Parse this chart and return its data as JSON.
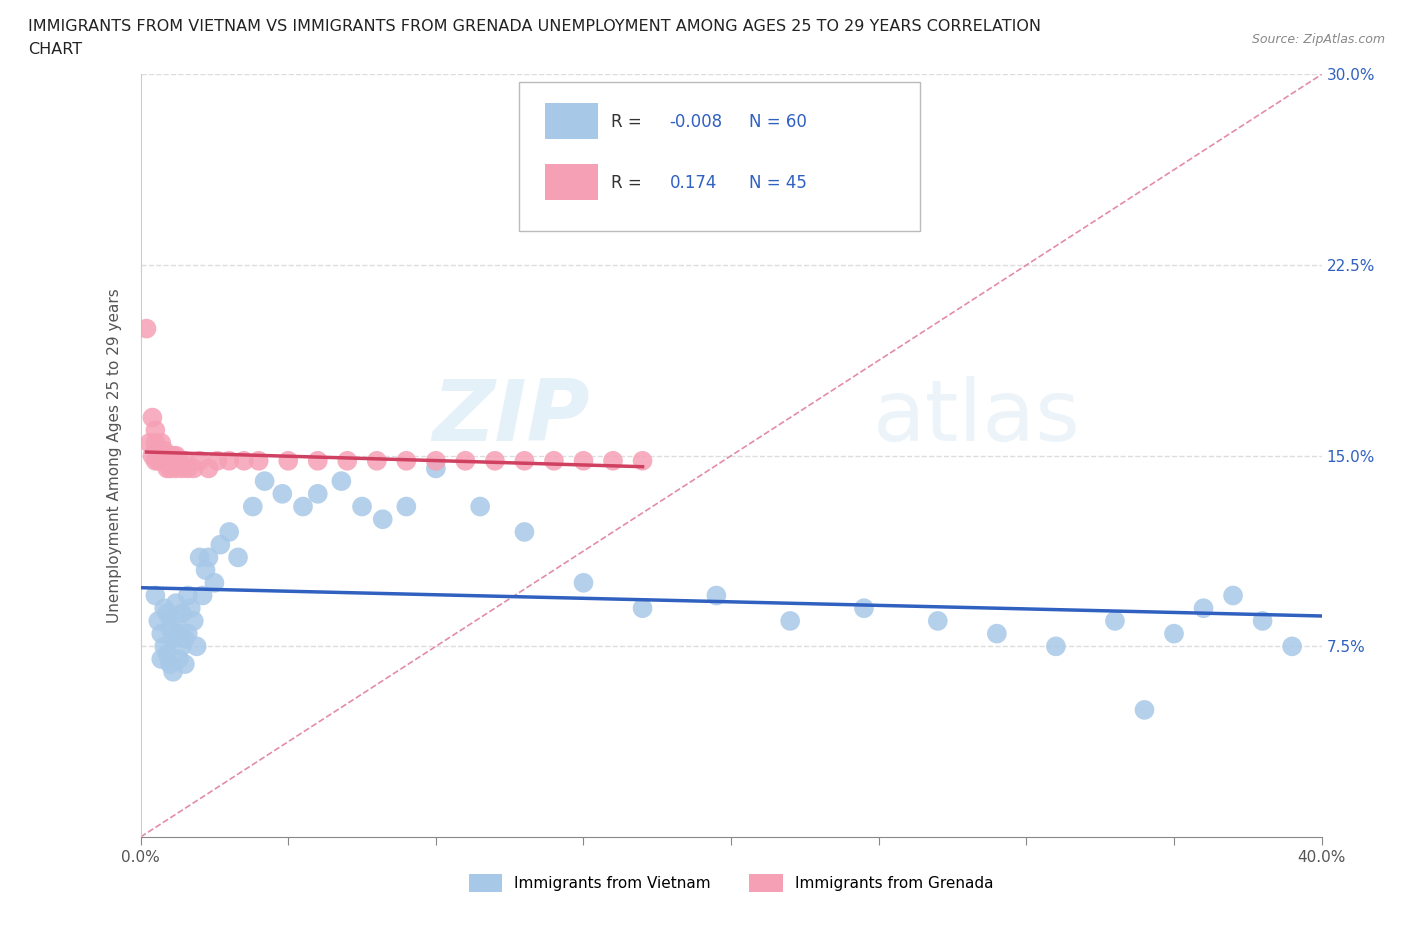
{
  "title_line1": "IMMIGRANTS FROM VIETNAM VS IMMIGRANTS FROM GRENADA UNEMPLOYMENT AMONG AGES 25 TO 29 YEARS CORRELATION",
  "title_line2": "CHART",
  "source": "Source: ZipAtlas.com",
  "ylabel": "Unemployment Among Ages 25 to 29 years",
  "xlim": [
    0.0,
    0.4
  ],
  "ylim": [
    0.0,
    0.3
  ],
  "xtick_positions": [
    0.0,
    0.05,
    0.1,
    0.15,
    0.2,
    0.25,
    0.3,
    0.35,
    0.4
  ],
  "xticklabels_show": {
    "0.0": "0.0%",
    "0.40": "40.0%"
  },
  "yticks": [
    0.0,
    0.075,
    0.15,
    0.225,
    0.3
  ],
  "yticklabels_right": [
    "",
    "7.5%",
    "15.0%",
    "22.5%",
    "30.0%"
  ],
  "vietnam_R": -0.008,
  "vietnam_N": 60,
  "grenada_R": 0.174,
  "grenada_N": 45,
  "vietnam_color": "#a8c8e8",
  "grenada_color": "#f5a0b5",
  "vietnam_line_color": "#3060c0",
  "grenada_line_color": "#d04060",
  "diag_line_color": "#e080a0",
  "watermark_zip": "ZIP",
  "watermark_atlas": "atlas",
  "vietnam_x": [
    0.005,
    0.006,
    0.007,
    0.007,
    0.008,
    0.008,
    0.009,
    0.009,
    0.01,
    0.01,
    0.011,
    0.011,
    0.012,
    0.012,
    0.013,
    0.013,
    0.014,
    0.014,
    0.015,
    0.015,
    0.016,
    0.016,
    0.017,
    0.018,
    0.019,
    0.02,
    0.021,
    0.022,
    0.023,
    0.025,
    0.027,
    0.03,
    0.033,
    0.038,
    0.042,
    0.048,
    0.055,
    0.06,
    0.068,
    0.075,
    0.082,
    0.09,
    0.1,
    0.115,
    0.13,
    0.15,
    0.17,
    0.195,
    0.22,
    0.245,
    0.27,
    0.29,
    0.31,
    0.33,
    0.35,
    0.36,
    0.37,
    0.38,
    0.39,
    0.34
  ],
  "vietnam_y": [
    0.095,
    0.085,
    0.08,
    0.07,
    0.09,
    0.075,
    0.088,
    0.072,
    0.082,
    0.068,
    0.078,
    0.065,
    0.085,
    0.092,
    0.08,
    0.07,
    0.075,
    0.088,
    0.078,
    0.068,
    0.095,
    0.08,
    0.09,
    0.085,
    0.075,
    0.11,
    0.095,
    0.105,
    0.11,
    0.1,
    0.115,
    0.12,
    0.11,
    0.13,
    0.14,
    0.135,
    0.13,
    0.135,
    0.14,
    0.13,
    0.125,
    0.13,
    0.145,
    0.13,
    0.12,
    0.1,
    0.09,
    0.095,
    0.085,
    0.09,
    0.085,
    0.08,
    0.075,
    0.085,
    0.08,
    0.09,
    0.095,
    0.085,
    0.075,
    0.05
  ],
  "grenada_x": [
    0.002,
    0.003,
    0.004,
    0.004,
    0.005,
    0.005,
    0.005,
    0.006,
    0.006,
    0.007,
    0.007,
    0.008,
    0.008,
    0.009,
    0.009,
    0.01,
    0.01,
    0.011,
    0.011,
    0.012,
    0.012,
    0.013,
    0.014,
    0.015,
    0.016,
    0.018,
    0.02,
    0.023,
    0.026,
    0.03,
    0.035,
    0.04,
    0.05,
    0.06,
    0.07,
    0.08,
    0.09,
    0.1,
    0.11,
    0.12,
    0.13,
    0.14,
    0.15,
    0.16,
    0.17
  ],
  "grenada_y": [
    0.2,
    0.155,
    0.165,
    0.15,
    0.16,
    0.148,
    0.155,
    0.148,
    0.152,
    0.148,
    0.155,
    0.148,
    0.152,
    0.145,
    0.148,
    0.148,
    0.145,
    0.15,
    0.148,
    0.145,
    0.15,
    0.148,
    0.145,
    0.148,
    0.145,
    0.145,
    0.148,
    0.145,
    0.148,
    0.148,
    0.148,
    0.148,
    0.148,
    0.148,
    0.148,
    0.148,
    0.148,
    0.148,
    0.148,
    0.148,
    0.148,
    0.148,
    0.148,
    0.148,
    0.148
  ]
}
